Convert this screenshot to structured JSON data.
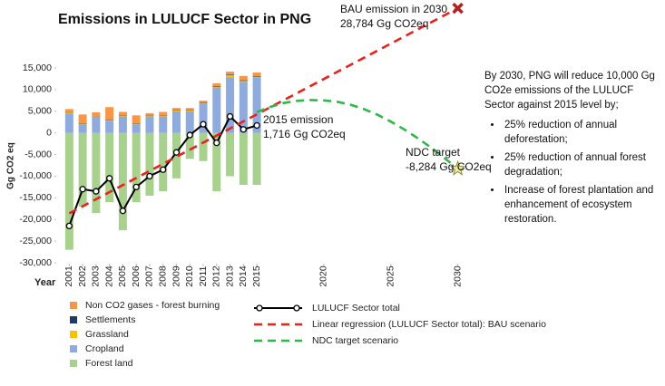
{
  "chart_data": {
    "type": "bar",
    "title": "Emissions in LULUCF Sector in PNG",
    "x_label": "Year",
    "y_label": "Gg CO2 eq",
    "x": [
      2001,
      2002,
      2003,
      2004,
      2005,
      2006,
      2007,
      2008,
      2009,
      2010,
      2011,
      2012,
      2013,
      2014,
      2015
    ],
    "xlim": [
      2000.3,
      2030.5
    ],
    "xticks": [
      2001,
      2002,
      2003,
      2004,
      2005,
      2006,
      2007,
      2008,
      2009,
      2010,
      2011,
      2012,
      2013,
      2014,
      2015,
      2020,
      2025,
      2030
    ],
    "ylim": [
      -30000,
      15000
    ],
    "yticks": [
      {
        "value": -30000,
        "label": "-30,000"
      },
      {
        "value": -25000,
        "label": "-25,000"
      },
      {
        "value": -20000,
        "label": "-20,000"
      },
      {
        "value": -15000,
        "label": "-15,000"
      },
      {
        "value": -10000,
        "label": "-10,000"
      },
      {
        "value": -5000,
        "label": "-5,000"
      },
      0,
      {
        "value": 5000,
        "label": "5,000"
      },
      {
        "value": 10000,
        "label": "10,000"
      },
      {
        "value": 15000,
        "label": "15,000"
      }
    ],
    "grid": false,
    "series": [
      {
        "name": "Non CO2 gases - forest burning",
        "type": "bar",
        "color": "#f79646",
        "values": [
          700,
          2000,
          1000,
          3000,
          800,
          1800,
          500,
          800,
          500,
          500,
          400,
          600,
          700,
          1000,
          800
        ]
      },
      {
        "name": "Settlements",
        "type": "bar",
        "color": "#1f3864",
        "values": [
          100,
          100,
          100,
          100,
          100,
          100,
          100,
          100,
          100,
          100,
          100,
          150,
          150,
          150,
          150
        ]
      },
      {
        "name": "Grassland",
        "type": "bar",
        "color": "#ffc000",
        "values": [
          200,
          150,
          150,
          150,
          150,
          150,
          150,
          150,
          150,
          150,
          150,
          200,
          500,
          200,
          200
        ]
      },
      {
        "name": "Cropland",
        "type": "bar",
        "color": "#8faadc",
        "values": [
          4500,
          2000,
          3500,
          2700,
          3800,
          2000,
          3800,
          3800,
          5000,
          5000,
          6800,
          10500,
          12800,
          11800,
          12800
        ]
      },
      {
        "name": "Forest land",
        "type": "bar",
        "color": "#a9d18e",
        "values": [
          -27000,
          -17000,
          -18500,
          -16000,
          -22500,
          -16000,
          -14500,
          -13500,
          -10500,
          -6000,
          -6500,
          -13500,
          -10000,
          -12000,
          -12000
        ]
      },
      {
        "name": "LULUCF Sector total",
        "type": "line",
        "color": "#000000",
        "dash": false,
        "markers": true,
        "values": [
          -21500,
          -13000,
          -13500,
          -10500,
          -18000,
          -12500,
          -10000,
          -8500,
          -4500,
          -500,
          2000,
          -2300,
          3800,
          800,
          1716
        ]
      },
      {
        "name": "Linear regression (LULUCF Sector total): BAU scenario",
        "type": "line",
        "color": "#e8231f",
        "dash": true,
        "end_marker": "x",
        "x": [
          2001,
          2030
        ],
        "values": [
          -18600,
          28784
        ]
      },
      {
        "name": "NDC target scenario",
        "type": "line",
        "color": "#2fb84a",
        "dash": true,
        "end_marker": "star",
        "x": [
          2015,
          2016,
          2017,
          2018,
          2019,
          2020,
          2021,
          2022,
          2023,
          2024,
          2025,
          2026,
          2027,
          2028,
          2029,
          2030
        ],
        "values": [
          4800,
          6000,
          6900,
          7400,
          7600,
          7500,
          7200,
          6500,
          5500,
          4200,
          2600,
          800,
          -1200,
          -3400,
          -5800,
          -8284
        ]
      }
    ],
    "annotations": [
      {
        "lines": [
          "2015 emission",
          "1,716 Gg CO2eq"
        ]
      },
      {
        "lines": [
          "NDC target",
          "-8,284 Gg CO2eq"
        ]
      },
      {
        "lines": [
          "BAU emission in 2030",
          "28,784 Gg CO2eq"
        ]
      }
    ],
    "side_note": {
      "text": "By 2030, PNG will reduce 10,000 Gg CO2e emissions of the LULUCF Sector against 2015 level by;",
      "bullets": [
        "25% reduction of annual deforestation;",
        "25% reduction of annual forest degradation;",
        "Increase of forest plantation and enhancement of ecosystem restoration."
      ]
    }
  }
}
